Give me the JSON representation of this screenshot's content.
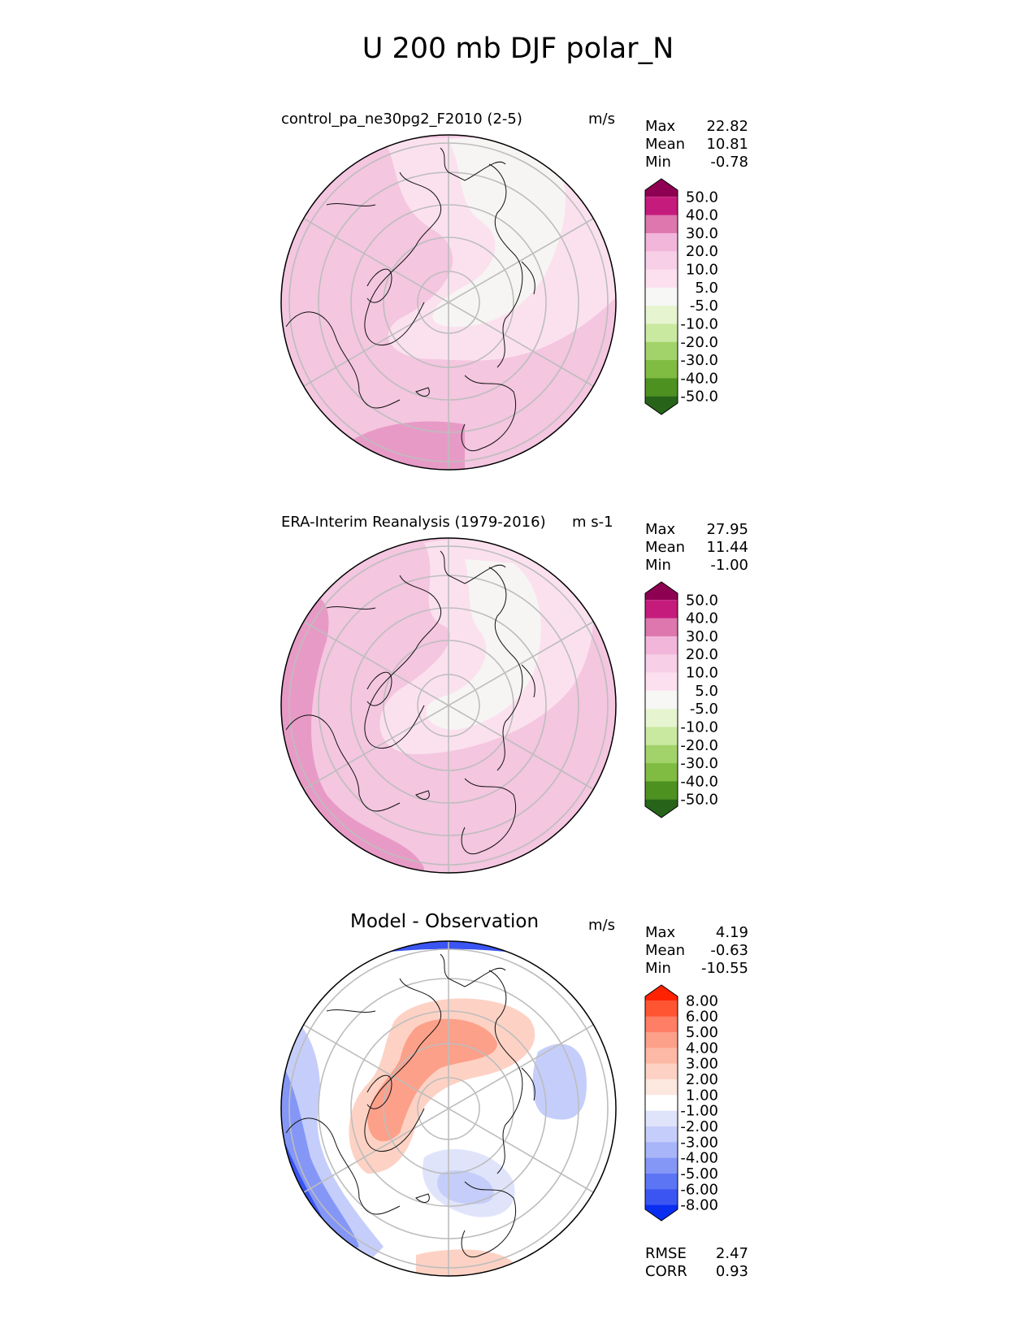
{
  "title": "U 200 mb DJF polar_N",
  "panels": [
    {
      "id": "test",
      "title": "control_pa_ne30pg2_F2010 (2-5)",
      "units": "m/s",
      "stats": [
        [
          "Max",
          "22.82"
        ],
        [
          "Mean",
          "10.81"
        ],
        [
          "Min",
          "-0.78"
        ]
      ],
      "colorbar": {
        "labels": [
          "50.0",
          "40.0",
          "30.0",
          "20.0",
          "10.0",
          "5.0",
          "-5.0",
          "-10.0",
          "-20.0",
          "-30.0",
          "-40.0",
          "-50.0"
        ],
        "colors": [
          "#8e0152",
          "#c51b7d",
          "#de77ae",
          "#f1b6da",
          "#f7cfe6",
          "#fde0ef",
          "#f7f7f6",
          "#e6f5d0",
          "#c9e9a1",
          "#a2d36a",
          "#7fbc41",
          "#4d9221",
          "#276419"
        ]
      }
    },
    {
      "id": "reference",
      "title": "ERA-Interim Reanalysis (1979-2016)",
      "units": "m s-1",
      "stats": [
        [
          "Max",
          "27.95"
        ],
        [
          "Mean",
          "11.44"
        ],
        [
          "Min",
          "-1.00"
        ]
      ],
      "colorbar": {
        "labels": [
          "50.0",
          "40.0",
          "30.0",
          "20.0",
          "10.0",
          "5.0",
          "-5.0",
          "-10.0",
          "-20.0",
          "-30.0",
          "-40.0",
          "-50.0"
        ],
        "colors": [
          "#8e0152",
          "#c51b7d",
          "#de77ae",
          "#f1b6da",
          "#f7cfe6",
          "#fde0ef",
          "#f7f7f6",
          "#e6f5d0",
          "#c9e9a1",
          "#a2d36a",
          "#7fbc41",
          "#4d9221",
          "#276419"
        ]
      }
    },
    {
      "id": "difference",
      "title": "Model - Observation",
      "units": "m/s",
      "stats": [
        [
          "Max",
          "4.19"
        ],
        [
          "Mean",
          "-0.63"
        ],
        [
          "Min",
          "-10.55"
        ]
      ],
      "extra_stats": [
        [
          "RMSE",
          "2.47"
        ],
        [
          "CORR",
          "0.93"
        ]
      ],
      "colorbar": {
        "labels": [
          "8.00",
          "6.00",
          "5.00",
          "4.00",
          "3.00",
          "2.00",
          "1.00",
          "-1.00",
          "-2.00",
          "-3.00",
          "-4.00",
          "-5.00",
          "-6.00",
          "-8.00"
        ],
        "colors": [
          "#ff2200",
          "#ff5533",
          "#ff7f66",
          "#fda08a",
          "#fdb9a6",
          "#fdd2c4",
          "#fde8e0",
          "#ffffff",
          "#dfe4fb",
          "#c5cefa",
          "#a8b5f8",
          "#8597f6",
          "#5c75f4",
          "#3a55f2",
          "#0a2ef0"
        ]
      }
    }
  ],
  "chart_data": {
    "type": "heatmap",
    "title": "U 200 mb DJF polar_N",
    "projection": "north polar stereographic",
    "series": [
      {
        "name": "control_pa_ne30pg2_F2010 (2-5)",
        "units": "m/s",
        "max": 22.82,
        "mean": 10.81,
        "min": -0.78
      },
      {
        "name": "ERA-Interim Reanalysis (1979-2016)",
        "units": "m s-1",
        "max": 27.95,
        "mean": 11.44,
        "min": -1.0
      },
      {
        "name": "Model - Observation",
        "units": "m/s",
        "max": 4.19,
        "mean": -0.63,
        "min": -10.55,
        "rmse": 2.47,
        "corr": 0.93
      }
    ],
    "levels_full_field": [
      -50,
      -40,
      -30,
      -20,
      -10,
      -5,
      5,
      10,
      20,
      30,
      40,
      50
    ],
    "levels_difference": [
      -8,
      -6,
      -5,
      -4,
      -3,
      -2,
      -1,
      1,
      2,
      3,
      4,
      5,
      6,
      8
    ]
  }
}
